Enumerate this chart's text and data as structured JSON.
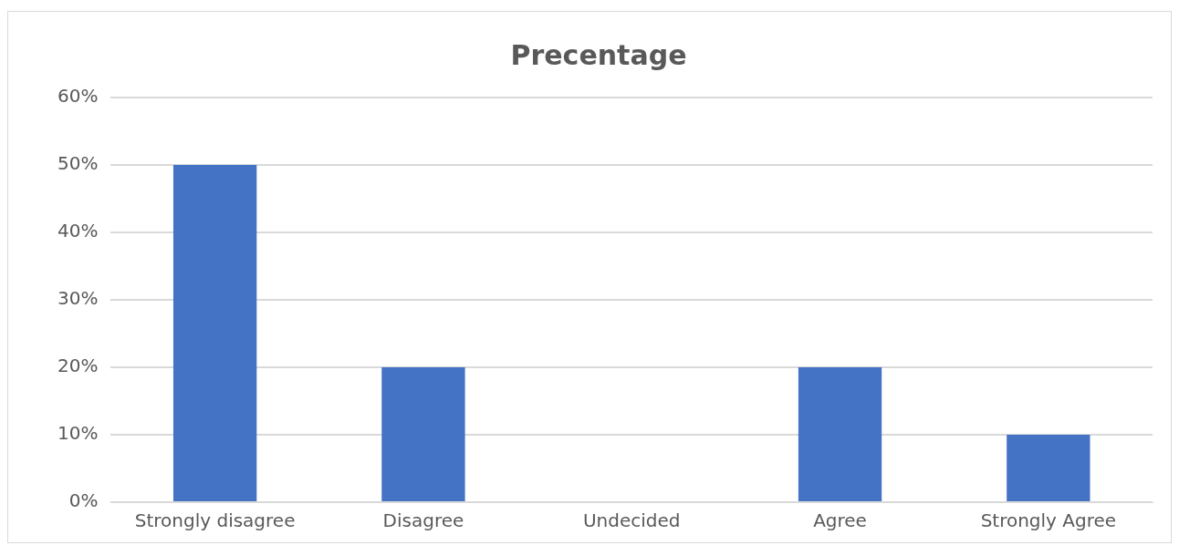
{
  "chart_data": {
    "type": "bar",
    "title": "Precentage",
    "categories": [
      "Strongly disagree",
      "Disagree",
      "Undecided",
      "Agree",
      "Strongly Agree"
    ],
    "values": [
      50,
      20,
      0,
      20,
      10
    ],
    "color": "#4472c4",
    "ylim": [
      0,
      60
    ],
    "yticks": [
      {
        "value": 0,
        "label": "0%"
      },
      {
        "value": 10,
        "label": "10%"
      },
      {
        "value": 20,
        "label": "20%"
      },
      {
        "value": 30,
        "label": "30%"
      },
      {
        "value": 40,
        "label": "40%"
      },
      {
        "value": 50,
        "label": "50%"
      },
      {
        "value": 60,
        "label": "60%"
      }
    ],
    "grid": "y",
    "legend": false
  }
}
